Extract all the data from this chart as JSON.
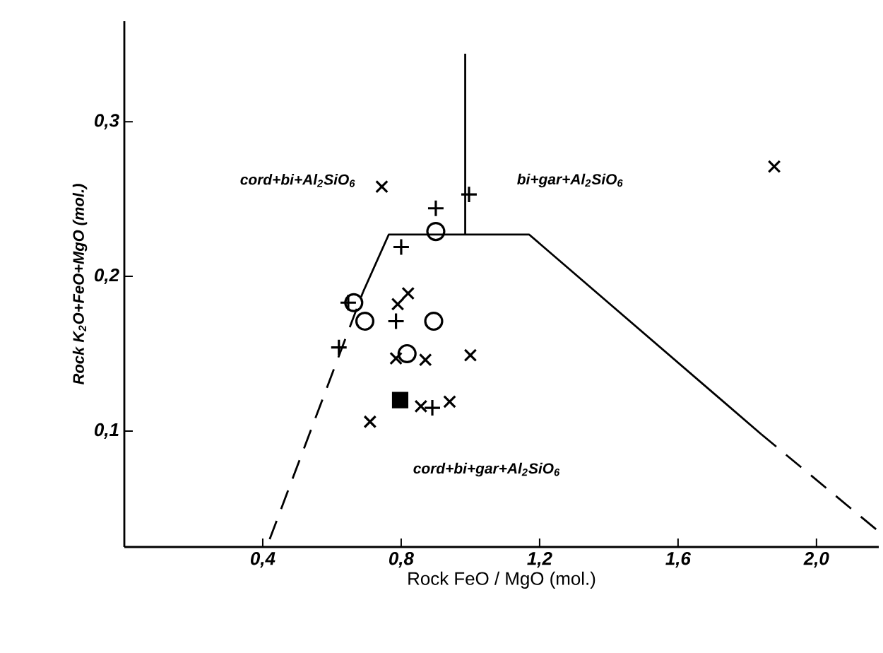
{
  "chart_data": {
    "type": "scatter",
    "xlabel": "Rock  FeO / MgO (mol.)",
    "ylabel": "Rock K$_{2}$O+FeO+MgO (mol.)",
    "xlim": [
      0,
      2.18
    ],
    "ylim": [
      0.025,
      0.365
    ],
    "xticks": [
      {
        "value": 0.4,
        "label": "0,4"
      },
      {
        "value": 0.8,
        "label": "0,8"
      },
      {
        "value": 1.2,
        "label": "1,2"
      },
      {
        "value": 1.6,
        "label": "1,6"
      },
      {
        "value": 2.0,
        "label": "2,0"
      }
    ],
    "yticks": [
      {
        "value": 0.1,
        "label": "0,1"
      },
      {
        "value": 0.2,
        "label": "0,2"
      },
      {
        "value": 0.3,
        "label": "0,3"
      }
    ],
    "annotations": [
      "cord+bi+Al$_{2}$SiO$_{6}$",
      "bi+gar+Al$_{2}$SiO$_{6}$",
      "cord+bi+gar+Al$_{2}$SiO$_{6}$"
    ],
    "series": [
      {
        "color": "#000000",
        "marker": "cross",
        "x": [
          0.744,
          0.82,
          0.79,
          0.785,
          0.87,
          1.0,
          0.857,
          0.94,
          0.71,
          1.878
        ],
        "values": [
          0.258,
          0.189,
          0.182,
          0.147,
          0.146,
          0.149,
          0.116,
          0.119,
          0.106,
          0.271
        ]
      },
      {
        "color": "#000000",
        "marker": "plus",
        "x": [
          0.996,
          0.9,
          0.8,
          0.785,
          0.62,
          0.89,
          0.647
        ],
        "values": [
          0.253,
          0.244,
          0.219,
          0.171,
          0.154,
          0.115,
          0.183
        ]
      },
      {
        "color": "#000000",
        "marker": "circle",
        "x": [
          0.9,
          0.663,
          0.695,
          0.894,
          0.817
        ],
        "values": [
          0.229,
          0.183,
          0.171,
          0.171,
          0.15
        ]
      },
      {
        "color": "#000000",
        "marker": "square",
        "x": [
          0.797
        ],
        "values": [
          0.12
        ]
      },
      {
        "type": "line",
        "color": "#000000",
        "marker": "none",
        "line_style": "dashed",
        "x": [
          0.42,
          0.69
        ],
        "values": [
          0.03,
          0.19
        ]
      },
      {
        "type": "line",
        "color": "#000000",
        "marker": "none",
        "line_style": "solid",
        "x": [
          0.69,
          0.764,
          1.17,
          1.84
        ],
        "values": [
          0.19,
          0.227,
          0.227,
          0.098
        ]
      },
      {
        "type": "line",
        "color": "#000000",
        "marker": "none",
        "line_style": "dashed",
        "x": [
          1.84,
          2.18
        ],
        "values": [
          0.098,
          0.035
        ]
      },
      {
        "type": "line",
        "color": "#000000",
        "marker": "none",
        "line_style": "solid",
        "x": [
          0.985,
          0.985
        ],
        "values": [
          0.227,
          0.344
        ]
      }
    ]
  }
}
